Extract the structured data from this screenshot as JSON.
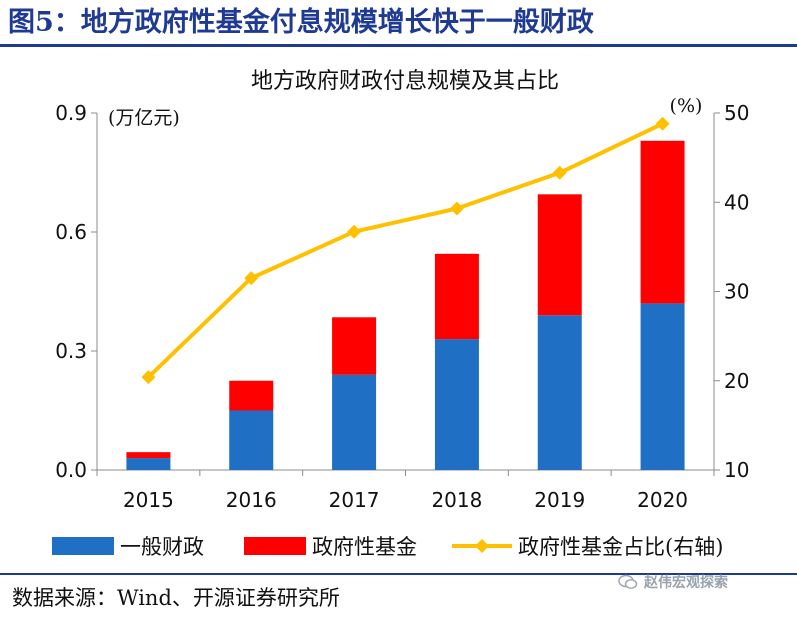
{
  "figure": {
    "title": "图5：地方政府性基金付息规模增长快于一般财政",
    "source": "数据来源：Wind、开源证券研究所",
    "watermark": "赵伟宏观探索"
  },
  "colors": {
    "title_blue": "#1f3a93",
    "general_budget": "#1f6fc4",
    "gov_fund": "#ff0000",
    "ratio_line": "#ffc000"
  },
  "chart_data": {
    "type": "bar",
    "stacked": true,
    "title": "地方政府财政付息规模及其占比",
    "categories": [
      "2015",
      "2016",
      "2017",
      "2018",
      "2019",
      "2020"
    ],
    "series": [
      {
        "name": "一般财政",
        "type": "bar",
        "axis": "left",
        "values": [
          0.03,
          0.15,
          0.24,
          0.33,
          0.39,
          0.42
        ]
      },
      {
        "name": "政府性基金",
        "type": "bar",
        "axis": "left",
        "values": [
          0.015,
          0.075,
          0.145,
          0.215,
          0.305,
          0.41
        ]
      },
      {
        "name": "政府性基金占比(右轴)",
        "type": "line",
        "axis": "right",
        "values": [
          20.4,
          31.5,
          36.7,
          39.3,
          43.3,
          48.8
        ]
      }
    ],
    "y_left": {
      "unit": "(万亿元)",
      "min": 0,
      "max": 0.9,
      "ticks": [
        "0.0",
        "0.3",
        "0.6",
        "0.9"
      ]
    },
    "y_right": {
      "unit": "(%)",
      "min": 10,
      "max": 50,
      "ticks": [
        "10",
        "20",
        "30",
        "40",
        "50"
      ]
    },
    "grid": false,
    "legend": "bottom"
  }
}
